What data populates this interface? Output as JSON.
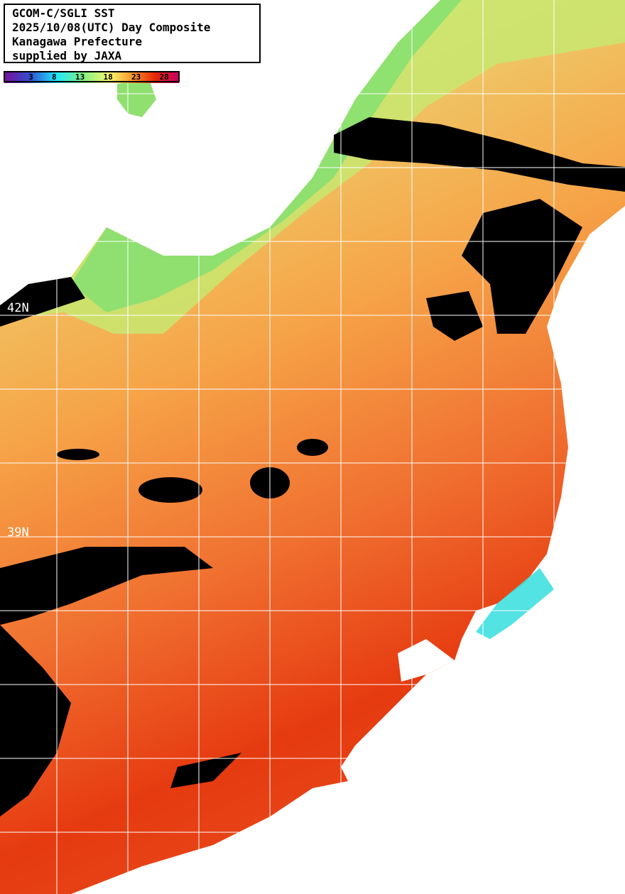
{
  "title": {
    "lines": [
      "GCOM-C/SGLI SST",
      "2025/10/08(UTC) Day Composite",
      "Kanagawa Prefecture",
      "supplied by JAXA"
    ]
  },
  "colorbar": {
    "ticks": [
      "3",
      "8",
      "13",
      "18",
      "23",
      "28"
    ],
    "colors": [
      "#7a0f9a",
      "#3050d0",
      "#20e8ff",
      "#80f080",
      "#f8f870",
      "#f8a030",
      "#e82808",
      "#c80060"
    ]
  },
  "grid": {
    "latitude_labels": [
      "42N",
      "39N"
    ]
  },
  "colors": {
    "land": "#ffffff",
    "cloud": "#000000",
    "sst_cold": "#80e070",
    "sst_mid": "#f6a448",
    "sst_warm": "#e63a10",
    "grid": "#ffffff"
  }
}
